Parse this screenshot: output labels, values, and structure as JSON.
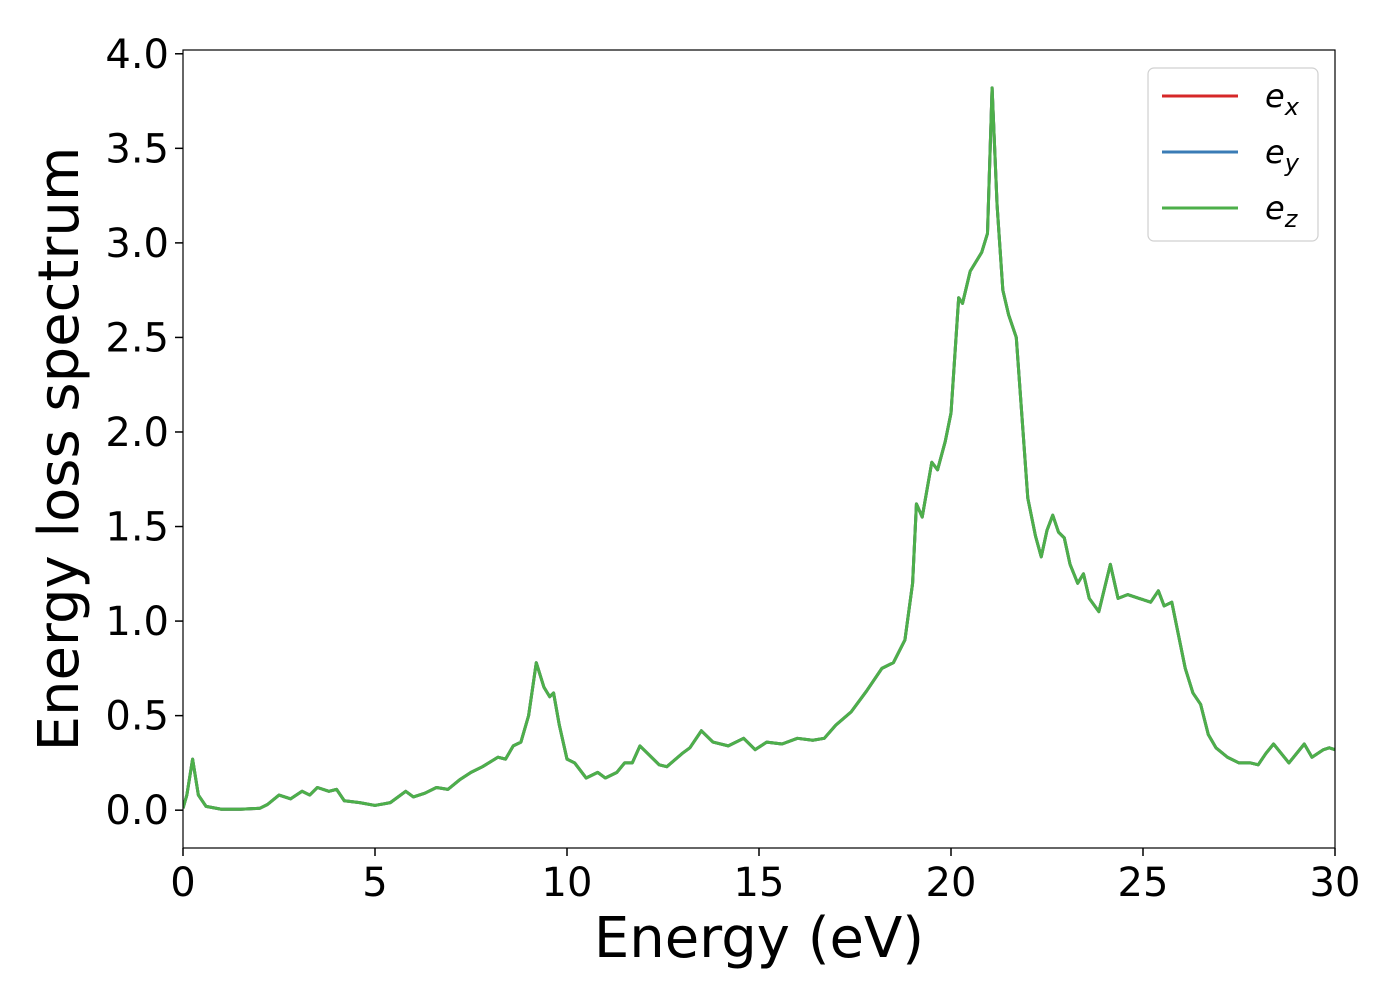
{
  "chart_data": {
    "type": "line",
    "xlabel": "Energy (eV)",
    "ylabel": "Energy loss spectrum",
    "x": [
      0,
      0.1,
      0.25,
      0.4,
      0.6,
      1.0,
      1.5,
      2.0,
      2.2,
      2.5,
      2.8,
      3.1,
      3.3,
      3.5,
      3.8,
      4.0,
      4.2,
      4.6,
      5.0,
      5.4,
      5.8,
      6.0,
      6.3,
      6.6,
      6.9,
      7.2,
      7.5,
      7.8,
      8.2,
      8.4,
      8.6,
      8.8,
      9.0,
      9.2,
      9.4,
      9.55,
      9.65,
      9.8,
      10.0,
      10.2,
      10.5,
      10.8,
      11.0,
      11.3,
      11.5,
      11.7,
      11.9,
      12.1,
      12.4,
      12.6,
      13.0,
      13.2,
      13.5,
      13.8,
      14.2,
      14.6,
      14.9,
      15.2,
      15.6,
      16.0,
      16.4,
      16.7,
      17.0,
      17.4,
      17.8,
      18.2,
      18.5,
      18.8,
      19.0,
      19.1,
      19.25,
      19.5,
      19.65,
      19.85,
      20.0,
      20.2,
      20.3,
      20.5,
      20.8,
      20.95,
      21.07,
      21.2,
      21.35,
      21.5,
      21.7,
      22.0,
      22.2,
      22.35,
      22.5,
      22.65,
      22.8,
      22.95,
      23.1,
      23.3,
      23.45,
      23.6,
      23.85,
      24.15,
      24.35,
      24.6,
      24.9,
      25.2,
      25.4,
      25.55,
      25.75,
      25.9,
      26.1,
      26.3,
      26.5,
      26.7,
      26.9,
      27.2,
      27.5,
      27.8,
      28.0,
      28.2,
      28.4,
      28.6,
      28.8,
      29.2,
      29.4,
      29.7,
      29.85,
      30.0
    ],
    "series": [
      {
        "name": "e_x",
        "color": "#d62728",
        "values": [
          0.01,
          0.08,
          0.27,
          0.08,
          0.02,
          0.005,
          0.005,
          0.01,
          0.03,
          0.08,
          0.06,
          0.1,
          0.08,
          0.12,
          0.1,
          0.11,
          0.05,
          0.04,
          0.025,
          0.04,
          0.1,
          0.07,
          0.09,
          0.12,
          0.11,
          0.16,
          0.2,
          0.23,
          0.28,
          0.27,
          0.34,
          0.36,
          0.5,
          0.78,
          0.65,
          0.6,
          0.62,
          0.45,
          0.27,
          0.25,
          0.17,
          0.2,
          0.17,
          0.2,
          0.25,
          0.25,
          0.34,
          0.3,
          0.24,
          0.23,
          0.3,
          0.33,
          0.42,
          0.36,
          0.34,
          0.38,
          0.32,
          0.36,
          0.35,
          0.38,
          0.37,
          0.38,
          0.45,
          0.52,
          0.63,
          0.75,
          0.78,
          0.9,
          1.2,
          1.62,
          1.55,
          1.84,
          1.8,
          1.95,
          2.1,
          2.71,
          2.68,
          2.85,
          2.95,
          3.05,
          3.82,
          3.2,
          2.75,
          2.62,
          2.5,
          1.65,
          1.45,
          1.34,
          1.48,
          1.56,
          1.47,
          1.44,
          1.3,
          1.2,
          1.25,
          1.12,
          1.05,
          1.3,
          1.12,
          1.14,
          1.12,
          1.1,
          1.16,
          1.08,
          1.1,
          0.95,
          0.75,
          0.62,
          0.56,
          0.4,
          0.33,
          0.28,
          0.25,
          0.25,
          0.24,
          0.3,
          0.35,
          0.3,
          0.25,
          0.35,
          0.28,
          0.32,
          0.33,
          0.32
        ]
      },
      {
        "name": "e_y",
        "color": "#3a7cb6",
        "values": [
          0.01,
          0.08,
          0.27,
          0.08,
          0.02,
          0.005,
          0.005,
          0.01,
          0.03,
          0.08,
          0.06,
          0.1,
          0.08,
          0.12,
          0.1,
          0.11,
          0.05,
          0.04,
          0.025,
          0.04,
          0.1,
          0.07,
          0.09,
          0.12,
          0.11,
          0.16,
          0.2,
          0.23,
          0.28,
          0.27,
          0.34,
          0.36,
          0.5,
          0.78,
          0.65,
          0.6,
          0.62,
          0.45,
          0.27,
          0.25,
          0.17,
          0.2,
          0.17,
          0.2,
          0.25,
          0.25,
          0.34,
          0.3,
          0.24,
          0.23,
          0.3,
          0.33,
          0.42,
          0.36,
          0.34,
          0.38,
          0.32,
          0.36,
          0.35,
          0.38,
          0.37,
          0.38,
          0.45,
          0.52,
          0.63,
          0.75,
          0.78,
          0.9,
          1.2,
          1.62,
          1.55,
          1.84,
          1.8,
          1.95,
          2.1,
          2.71,
          2.68,
          2.85,
          2.95,
          3.05,
          3.82,
          3.2,
          2.75,
          2.62,
          2.5,
          1.65,
          1.45,
          1.34,
          1.48,
          1.56,
          1.47,
          1.44,
          1.3,
          1.2,
          1.25,
          1.12,
          1.05,
          1.3,
          1.12,
          1.14,
          1.12,
          1.1,
          1.16,
          1.08,
          1.1,
          0.95,
          0.75,
          0.62,
          0.56,
          0.4,
          0.33,
          0.28,
          0.25,
          0.25,
          0.24,
          0.3,
          0.35,
          0.3,
          0.25,
          0.35,
          0.28,
          0.32,
          0.33,
          0.32
        ]
      },
      {
        "name": "e_z",
        "color": "#4daf4a",
        "values": [
          0.01,
          0.08,
          0.27,
          0.08,
          0.02,
          0.005,
          0.005,
          0.01,
          0.03,
          0.08,
          0.06,
          0.1,
          0.08,
          0.12,
          0.1,
          0.11,
          0.05,
          0.04,
          0.025,
          0.04,
          0.1,
          0.07,
          0.09,
          0.12,
          0.11,
          0.16,
          0.2,
          0.23,
          0.28,
          0.27,
          0.34,
          0.36,
          0.5,
          0.78,
          0.65,
          0.6,
          0.62,
          0.45,
          0.27,
          0.25,
          0.17,
          0.2,
          0.17,
          0.2,
          0.25,
          0.25,
          0.34,
          0.3,
          0.24,
          0.23,
          0.3,
          0.33,
          0.42,
          0.36,
          0.34,
          0.38,
          0.32,
          0.36,
          0.35,
          0.38,
          0.37,
          0.38,
          0.45,
          0.52,
          0.63,
          0.75,
          0.78,
          0.9,
          1.2,
          1.62,
          1.55,
          1.84,
          1.8,
          1.95,
          2.1,
          2.71,
          2.68,
          2.85,
          2.95,
          3.05,
          3.82,
          3.2,
          2.75,
          2.62,
          2.5,
          1.65,
          1.45,
          1.34,
          1.48,
          1.56,
          1.47,
          1.44,
          1.3,
          1.2,
          1.25,
          1.12,
          1.05,
          1.3,
          1.12,
          1.14,
          1.12,
          1.1,
          1.16,
          1.08,
          1.1,
          0.95,
          0.75,
          0.62,
          0.56,
          0.4,
          0.33,
          0.28,
          0.25,
          0.25,
          0.24,
          0.3,
          0.35,
          0.3,
          0.25,
          0.35,
          0.28,
          0.32,
          0.33,
          0.32
        ]
      }
    ],
    "xlim": [
      0,
      30
    ],
    "xticks": [
      0,
      5,
      10,
      15,
      20,
      25,
      30
    ],
    "ylim": [
      -0.2,
      4.02
    ],
    "yticks": [
      {
        "value": 0,
        "label": "0.0"
      },
      0.5,
      {
        "value": 1,
        "label": "1.0"
      },
      1.5,
      {
        "value": 2,
        "label": "2.0"
      },
      2.5,
      {
        "value": 3,
        "label": "3.0"
      },
      3.5,
      {
        "value": 4,
        "label": "4.0"
      }
    ],
    "legend": "upper right",
    "grid": false
  }
}
